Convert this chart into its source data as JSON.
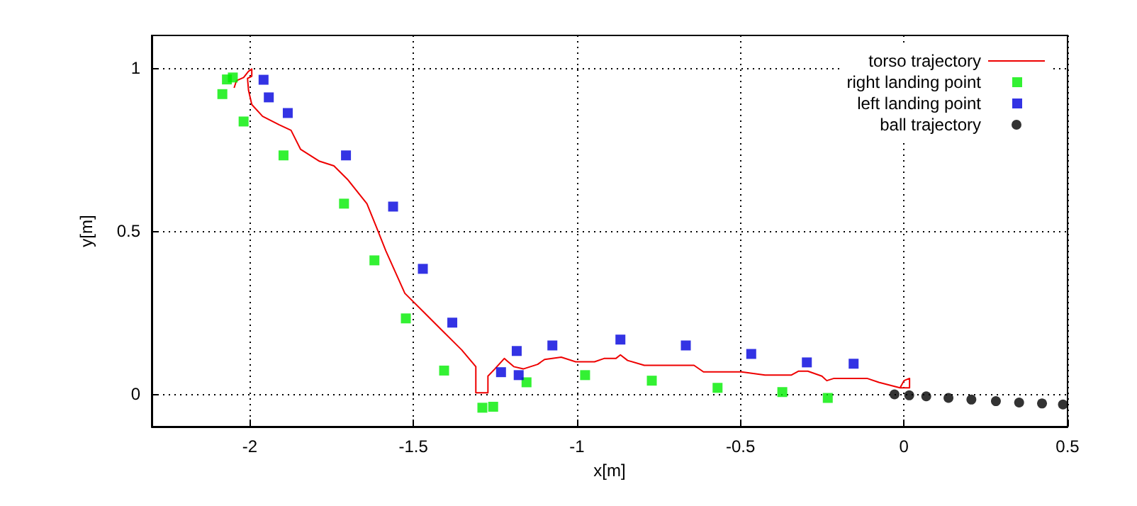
{
  "chart_data": {
    "type": "scatter",
    "xlabel": "x[m]",
    "ylabel": "y[m]",
    "xlim": [
      -2.3,
      0.5
    ],
    "ylim": [
      -0.1,
      1.1
    ],
    "xticks": [
      -2,
      -1.5,
      -1,
      -0.5,
      0,
      0.5
    ],
    "yticks": [
      0,
      0.5,
      1
    ],
    "grid": true,
    "legend": "top right",
    "series": [
      {
        "name": "torso trajectory",
        "type": "line",
        "color": "#ee0000",
        "marker": "none",
        "line_style": "solid",
        "x": [
          -2.048,
          -2.041,
          -2.019,
          -2.004,
          -1.994,
          -1.994,
          -2.007,
          -2.004,
          -1.994,
          -1.961,
          -1.91,
          -1.874,
          -1.845,
          -1.787,
          -1.743,
          -1.7,
          -1.642,
          -1.613,
          -1.584,
          -1.526,
          -1.468,
          -1.41,
          -1.352,
          -1.309,
          -1.309,
          -1.272,
          -1.272,
          -1.251,
          -1.222,
          -1.193,
          -1.164,
          -1.12,
          -1.099,
          -1.048,
          -1.004,
          -0.946,
          -0.917,
          -0.881,
          -0.867,
          -0.845,
          -0.794,
          -0.642,
          -0.613,
          -0.497,
          -0.425,
          -0.345,
          -0.323,
          -0.294,
          -0.251,
          -0.236,
          -0.214,
          -0.113,
          -0.077,
          -0.012,
          0,
          0.017,
          0.017,
          -0.012
        ],
        "values": [
          0.939,
          0.961,
          0.971,
          0.99,
          0.997,
          0.975,
          0.968,
          0.932,
          0.888,
          0.852,
          0.826,
          0.809,
          0.751,
          0.714,
          0.7,
          0.657,
          0.584,
          0.512,
          0.439,
          0.309,
          0.251,
          0.193,
          0.135,
          0.084,
          0.004,
          0.004,
          0.055,
          0.077,
          0.109,
          0.084,
          0.077,
          0.091,
          0.106,
          0.113,
          0.099,
          0.099,
          0.109,
          0.109,
          0.12,
          0.103,
          0.088,
          0.088,
          0.068,
          0.068,
          0.058,
          0.058,
          0.07,
          0.07,
          0.055,
          0.041,
          0.048,
          0.048,
          0.036,
          0.019,
          0.041,
          0.048,
          0.019,
          0.019
        ]
      },
      {
        "name": "right landing point",
        "color": "#00ee00",
        "marker": "square",
        "x": [
          -2.084,
          -2.07,
          -2.052,
          -2.019,
          -1.897,
          -1.712,
          -1.619,
          -1.523,
          -1.406,
          -1.289,
          -1.256,
          -1.154,
          -0.975,
          -0.771,
          -0.57,
          -0.372,
          -0.233
        ],
        "values": [
          0.92,
          0.965,
          0.971,
          0.836,
          0.732,
          0.584,
          0.41,
          0.232,
          0.072,
          -0.042,
          -0.039,
          0.036,
          0.058,
          0.041,
          0.019,
          0.006,
          -0.012
        ]
      },
      {
        "name": "left landing point",
        "color": "#0000dd",
        "marker": "square",
        "x": [
          -1.958,
          -1.942,
          -1.884,
          -1.706,
          -1.562,
          -1.471,
          -1.381,
          -1.232,
          -1.184,
          -1.178,
          -1.075,
          -0.867,
          -0.667,
          -0.467,
          -0.297,
          -0.154
        ],
        "values": [
          0.964,
          0.91,
          0.862,
          0.732,
          0.575,
          0.384,
          0.219,
          0.067,
          0.132,
          0.058,
          0.149,
          0.167,
          0.149,
          0.123,
          0.097,
          0.093
        ]
      },
      {
        "name": "ball trajectory",
        "color": "#000000",
        "marker": "circle",
        "x": [
          -0.029,
          0.016,
          0.068,
          0.136,
          0.206,
          0.281,
          0.352,
          0.422,
          0.486
        ],
        "values": [
          -0.001,
          -0.004,
          -0.007,
          -0.012,
          -0.017,
          -0.022,
          -0.026,
          -0.029,
          -0.032
        ]
      }
    ]
  }
}
